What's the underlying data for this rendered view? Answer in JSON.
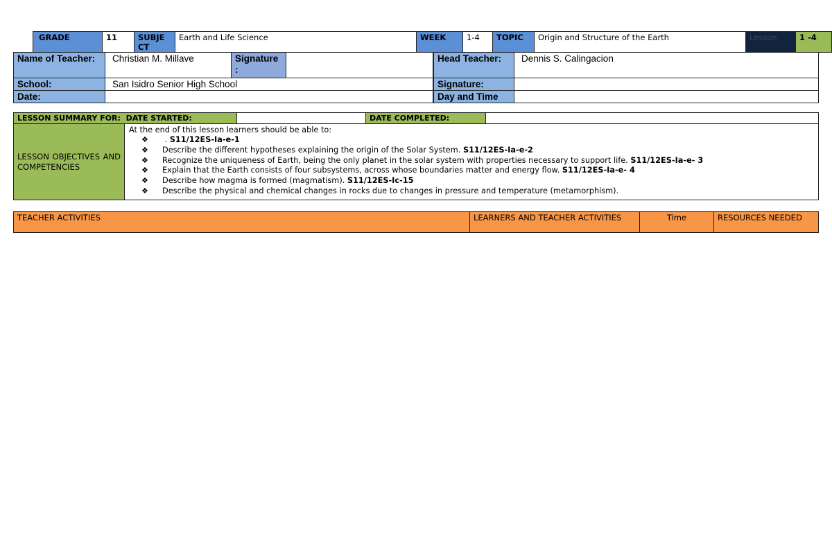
{
  "header": {
    "grade_label": "GRADE",
    "grade": "11",
    "subject_label": "SUBJE CT",
    "subject": "Earth and Life Science",
    "week_label": "WEEK",
    "week": "1-4",
    "topic_label": "TOPIC",
    "topic": "Origin and Structure of the Earth",
    "lesson_label": "Lesson",
    "lesson": "1 -4"
  },
  "info": {
    "teacher_label": "Name of Teacher:",
    "teacher": "Christian M. Millave",
    "signature_label": "Signature :",
    "head_teacher_label": "Head Teacher:",
    "head_teacher": "Dennis S. Calingacion",
    "school_label": "School:",
    "school": "San Isidro Senior High School",
    "signature2_label": "Signature:",
    "date_label": "Date:",
    "day_time_label": "Day and Time"
  },
  "summary": {
    "label": "LESSON SUMMARY FOR:  DATE STARTED:",
    "completed_label": "DATE COMPLETED:"
  },
  "objectives": {
    "label": "LESSON OBJECTIVES AND COMPETENCIES",
    "intro": "At the end of this lesson learners should be able to:",
    "items": [
      {
        "text": " . ",
        "code": "S11/12ES-Ia-e-1"
      },
      {
        "text": "Describe the different hypotheses explaining the origin of the Solar System. ",
        "code": "S11/12ES-Ia-e-2"
      },
      {
        "text": "Recognize the uniqueness of Earth, being the only planet in the solar system with properties necessary to support life. ",
        "code": "S11/12ES-Ia-e- 3"
      },
      {
        "text": "Explain that the Earth consists of four subsystems, across whose boundaries matter and energy flow. ",
        "code": "S11/12ES-Ia-e- 4"
      },
      {
        "text": "Describe how magma is formed (magmatism). ",
        "code": "S11/12ES-Ic-15"
      },
      {
        "text": "Describe the physical and chemical changes in rocks due to changes in pressure and temperature (metamorphism).",
        "code": ""
      }
    ]
  },
  "activities": {
    "teacher": "TEACHER ACTIVITIES",
    "learners": "LEARNERS AND TEACHER ACTIVITIES",
    "time": "Time",
    "resources": "RESOURCES NEEDED"
  },
  "colors": {
    "blue": "#5b8fd6",
    "light_blue": "#8db3e2",
    "green": "#9bbb59",
    "orange": "#f79646",
    "navy": "#12233d"
  }
}
